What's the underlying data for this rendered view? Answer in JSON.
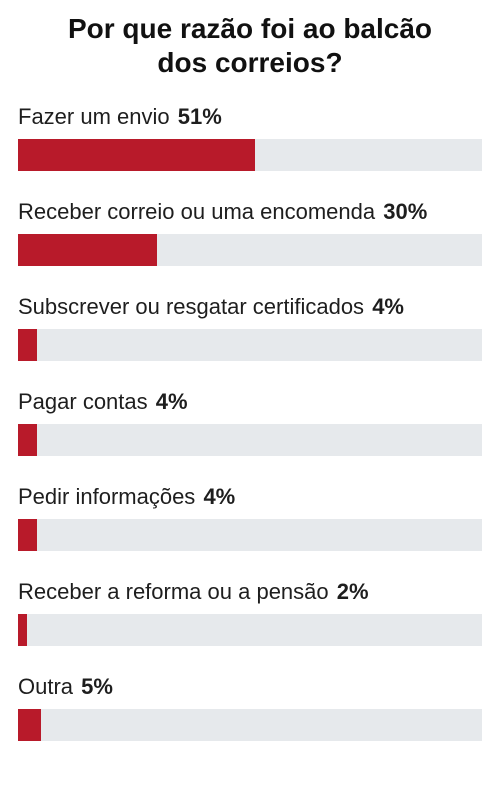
{
  "chart_data": {
    "type": "bar",
    "orientation": "horizontal",
    "title_lines": [
      "Por que razão foi ao balcão",
      "dos correios?"
    ],
    "categories": [
      "Fazer um envio",
      "Receber correio ou uma encomenda",
      "Subscrever ou resgatar certificados",
      "Pagar contas",
      "Pedir informações",
      "Receber a reforma ou a pensão",
      "Outra"
    ],
    "values": [
      51,
      30,
      4,
      4,
      4,
      2,
      5
    ],
    "value_labels": [
      "51%",
      "30%",
      "4%",
      "4%",
      "4%",
      "2%",
      "5%"
    ],
    "unit": "%",
    "xlim": [
      0,
      100
    ],
    "bar_color": "#b81a2a",
    "track_color": "#e6e9ec",
    "grid": false,
    "legend": "none"
  }
}
